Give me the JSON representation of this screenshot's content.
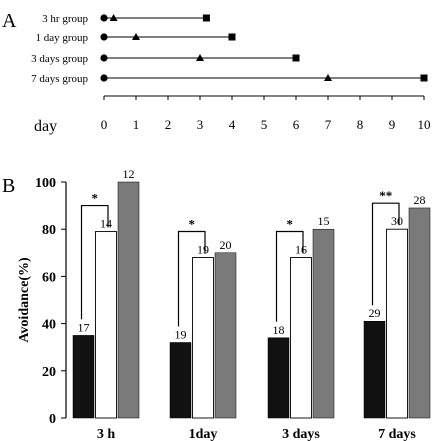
{
  "panel_a": {
    "label": "A",
    "axis_label": "day",
    "groups": [
      {
        "name": "3 hr group",
        "start": 0,
        "test": 0.3,
        "end": 3.2
      },
      {
        "name": "1 day group",
        "start": 0,
        "test": 1,
        "end": 4
      },
      {
        "name": "3 days group",
        "start": 0,
        "test": 3,
        "end": 6
      },
      {
        "name": "7 days group",
        "start": 0,
        "test": 7,
        "end": 10
      }
    ],
    "ticks": [
      "0",
      "1",
      "2",
      "3",
      "4",
      "5",
      "6",
      "7",
      "8",
      "9",
      "10"
    ]
  },
  "panel_b": {
    "label": "B"
  },
  "chart_data": {
    "type": "bar",
    "ylabel": "Avoidance(%)",
    "ylim": [
      0,
      100
    ],
    "yticks": [
      "0",
      "20",
      "40",
      "60",
      "80",
      "100"
    ],
    "categories": [
      "3 h",
      "1day",
      "3 days",
      "7 days"
    ],
    "series": [
      {
        "color": "#111111",
        "values": [
          35,
          32,
          34,
          41
        ],
        "n": [
          "17",
          "19",
          "18",
          "29"
        ]
      },
      {
        "color": "#ffffff",
        "values": [
          79,
          68,
          68,
          80
        ],
        "n": [
          "14",
          "19",
          "16",
          "30"
        ]
      },
      {
        "color": "#7a7a7a",
        "values": [
          100,
          70,
          80,
          89
        ],
        "n": [
          "12",
          "20",
          "15",
          "28"
        ]
      }
    ],
    "significance": [
      "*",
      "*",
      "*",
      "**"
    ]
  }
}
